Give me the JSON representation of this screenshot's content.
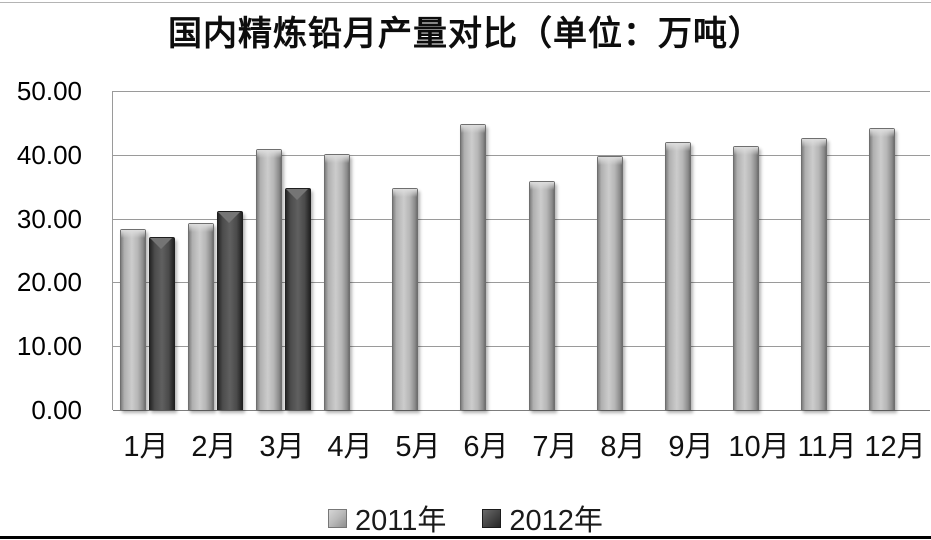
{
  "chart_data": {
    "type": "bar",
    "title": "国内精炼铅月产量对比（单位：万吨）",
    "categories": [
      "1月",
      "2月",
      "3月",
      "4月",
      "5月",
      "6月",
      "7月",
      "8月",
      "9月",
      "10月",
      "11月",
      "12月"
    ],
    "series": [
      {
        "name": "2011年",
        "color": "#b4b4b4",
        "values": [
          28.2,
          29.2,
          40.8,
          40.0,
          34.6,
          44.7,
          35.7,
          39.6,
          41.9,
          41.3,
          42.4,
          44.1
        ]
      },
      {
        "name": "2012年",
        "color": "#4d4d4d",
        "values": [
          27.0,
          31.0,
          34.7,
          null,
          null,
          null,
          null,
          null,
          null,
          null,
          null,
          null
        ]
      }
    ],
    "ylabel": "",
    "xlabel": "",
    "ylim": [
      0,
      50
    ],
    "ytick_interval": 10,
    "yticks": [
      "50.00",
      "40.00",
      "30.00",
      "20.00",
      "10.00",
      "0.00"
    ],
    "grid": true,
    "legend_position": "bottom"
  }
}
